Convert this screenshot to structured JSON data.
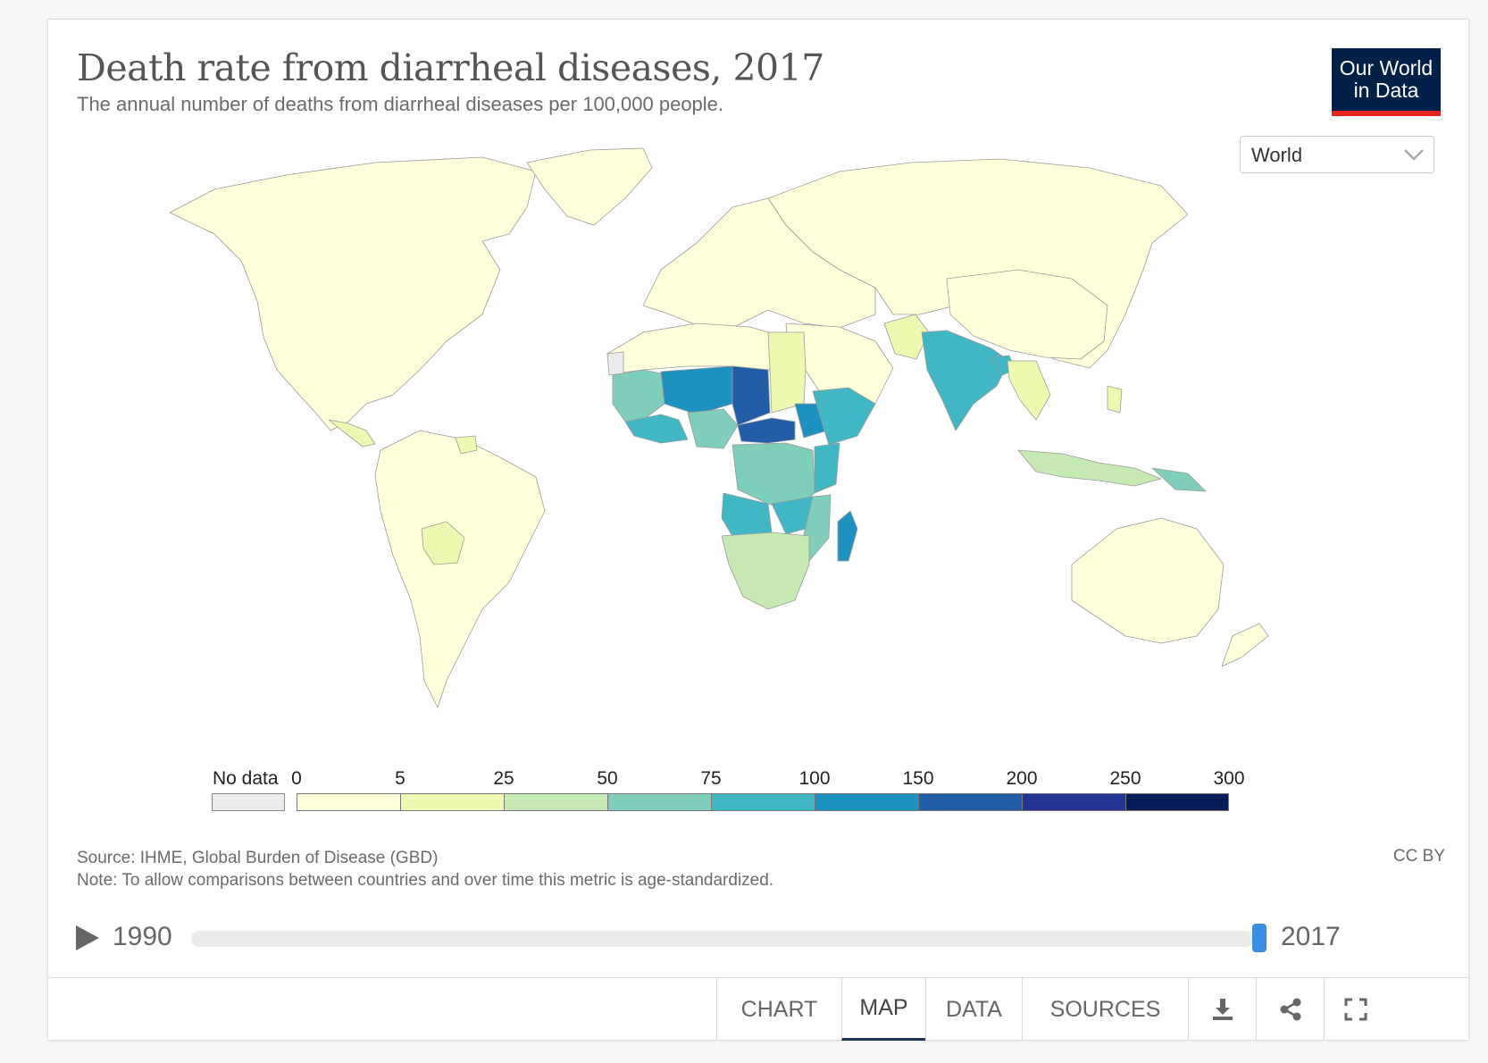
{
  "header": {
    "title": "Death rate from diarrheal diseases, 2017",
    "subtitle": "The annual number of deaths from diarrheal diseases per 100,000 people."
  },
  "logo": {
    "line1": "Our World",
    "line2": "in Data"
  },
  "region_select": {
    "value": "World"
  },
  "legend": {
    "no_data_label": "No data",
    "no_data_color": "#ececec",
    "ticks": [
      "0",
      "5",
      "25",
      "50",
      "75",
      "100",
      "150",
      "200",
      "250",
      "300"
    ],
    "colors": [
      "#ffffd9",
      "#edf8b1",
      "#c7e9b4",
      "#7fcdbb",
      "#41b6c4",
      "#1d91c0",
      "#225ea8",
      "#253494",
      "#081d58"
    ]
  },
  "footer": {
    "source": "Source: IHME, Global Burden of Disease (GBD)",
    "note": "Note: To allow comparisons between countries and over time this metric is age-standardized.",
    "license": "CC BY"
  },
  "timeline": {
    "start": "1990",
    "end": "2017",
    "selected_year": 2017
  },
  "tabs": [
    {
      "label": "CHART",
      "active": false
    },
    {
      "label": "MAP",
      "active": true
    },
    {
      "label": "DATA",
      "active": false
    },
    {
      "label": "SOURCES",
      "active": false
    }
  ],
  "icons": [
    "download-icon",
    "share-icon",
    "fullscreen-icon"
  ],
  "map_shading": {
    "base": "#ffffd9",
    "pale": "#edf8b1",
    "light": "#c7e9b4",
    "mid": "#7fcdbb",
    "teal": "#41b6c4",
    "blue": "#1d91c0",
    "dark": "#225ea8",
    "no_data": "#ececec"
  }
}
